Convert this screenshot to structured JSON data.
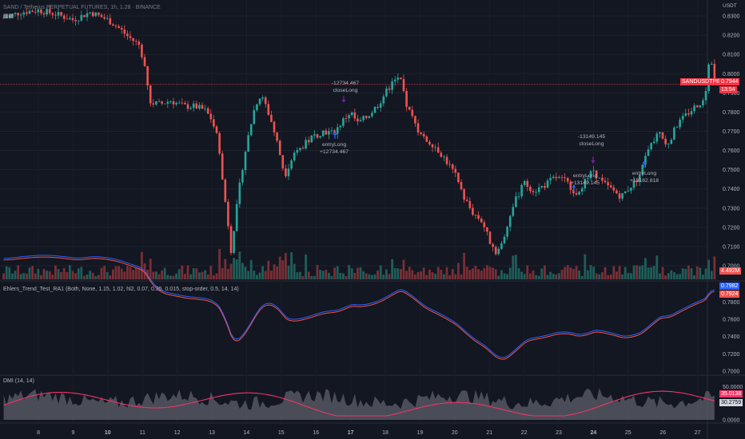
{
  "header": {
    "symbol_line": "SAND / Tetherus PERPETUAL FUTURES, 1h, 1.28 · BINANCE",
    "currency": "USDT"
  },
  "price_pane": {
    "ticks": [
      "0.8300",
      "0.8200",
      "0.8100",
      "0.8000",
      "0.7900",
      "0.7800",
      "0.7700",
      "0.7600",
      "0.7500",
      "0.7400",
      "0.7300",
      "0.7200",
      "0.7100",
      "0.7000"
    ],
    "symbol_tag": "SANDUSDTPERP",
    "last_price": "0.7944",
    "countdown": "13:54",
    "volume_tag": "4.492M",
    "colors": {
      "up": "#26a69a",
      "down": "#ef5350",
      "tag": "#f23645",
      "volume_up": "#1f5e59",
      "volume_down": "#7a2f35"
    },
    "annotations": [
      {
        "name": "close-long-1",
        "lines": [
          "-12734.467",
          "closeLong"
        ]
      },
      {
        "name": "entry-long-1",
        "lines": [
          "entryLong",
          "+12734.467"
        ]
      },
      {
        "name": "close-long-2",
        "lines": [
          "-13149.145",
          "closeLong"
        ]
      },
      {
        "name": "entry-long-2",
        "lines": [
          "entryLong",
          "+13149.145"
        ]
      },
      {
        "name": "entry-long-3",
        "lines": [
          "entryLong",
          "+13182.818"
        ]
      }
    ]
  },
  "indicator_pane": {
    "title": "Ehlers_Trend_Test_RA1 (Both, None, 1.15, 1.02, hl2, 0.07, 0.35, 0.015, stop-order, 0.5, 14, 14)",
    "ticks": [
      "0.7800",
      "0.7600",
      "0.7400",
      "0.7200",
      "0.7000"
    ],
    "value_blue": "0.7982",
    "value_red": "0.7924",
    "colors": {
      "blue": "#2962ff",
      "red": "#ef5350"
    }
  },
  "dmi_pane": {
    "title": "DMI (14, 14)",
    "ticks": [
      "50.0000",
      "0.0000"
    ],
    "value_pink": "35.0138",
    "value_gray": "30.2759",
    "colors": {
      "pink": "#f23468",
      "area": "#5d606b"
    }
  },
  "x_axis": {
    "labels": [
      "8",
      "9",
      "10",
      "11",
      "12",
      "13",
      "14",
      "15",
      "16",
      "17",
      "18",
      "19",
      "20",
      "21",
      "22",
      "23",
      "24",
      "25",
      "26",
      "27"
    ]
  },
  "chart_data": {
    "type": "candlestick",
    "timeframe": "1h",
    "ylim": [
      0.695,
      0.835
    ],
    "x_range": [
      "7",
      "27"
    ],
    "close_path": [
      [
        "7.0",
        0.829
      ],
      [
        "7.5",
        0.832
      ],
      [
        "8.0",
        0.833
      ],
      [
        "8.5",
        0.831
      ],
      [
        "9.0",
        0.828
      ],
      [
        "9.5",
        0.832
      ],
      [
        "10.0",
        0.828
      ],
      [
        "10.3",
        0.824
      ],
      [
        "10.6",
        0.819
      ],
      [
        "10.9",
        0.815
      ],
      [
        "11.1",
        0.803
      ],
      [
        "11.2",
        0.785
      ],
      [
        "11.5",
        0.784
      ],
      [
        "11.8",
        0.786
      ],
      [
        "12.2",
        0.783
      ],
      [
        "12.5",
        0.783
      ],
      [
        "12.8",
        0.781
      ],
      [
        "13.0",
        0.776
      ],
      [
        "13.2",
        0.764
      ],
      [
        "13.3",
        0.745
      ],
      [
        "13.45",
        0.725
      ],
      [
        "13.55",
        0.708
      ],
      [
        "13.7",
        0.728
      ],
      [
        "13.85",
        0.748
      ],
      [
        "14.0",
        0.763
      ],
      [
        "14.2",
        0.78
      ],
      [
        "14.35",
        0.788
      ],
      [
        "14.5",
        0.786
      ],
      [
        "14.7",
        0.776
      ],
      [
        "14.9",
        0.763
      ],
      [
        "15.1",
        0.747
      ],
      [
        "15.3",
        0.756
      ],
      [
        "15.6",
        0.762
      ],
      [
        "15.9",
        0.767
      ],
      [
        "16.2",
        0.77
      ],
      [
        "16.5",
        0.769
      ],
      [
        "16.8",
        0.776
      ],
      [
        "17.0",
        0.78
      ],
      [
        "17.2",
        0.774
      ],
      [
        "17.5",
        0.778
      ],
      [
        "17.8",
        0.784
      ],
      [
        "18.0",
        0.79
      ],
      [
        "18.2",
        0.795
      ],
      [
        "18.4",
        0.799
      ],
      [
        "18.6",
        0.784
      ],
      [
        "18.9",
        0.772
      ],
      [
        "19.1",
        0.766
      ],
      [
        "19.4",
        0.763
      ],
      [
        "19.7",
        0.756
      ],
      [
        "20.0",
        0.748
      ],
      [
        "20.2",
        0.738
      ],
      [
        "20.5",
        0.728
      ],
      [
        "20.8",
        0.723
      ],
      [
        "21.0",
        0.713
      ],
      [
        "21.2",
        0.707
      ],
      [
        "21.4",
        0.712
      ],
      [
        "21.6",
        0.727
      ],
      [
        "21.8",
        0.736
      ],
      [
        "22.0",
        0.743
      ],
      [
        "22.3",
        0.739
      ],
      [
        "22.6",
        0.742
      ],
      [
        "22.9",
        0.746
      ],
      [
        "23.2",
        0.744
      ],
      [
        "23.5",
        0.738
      ],
      [
        "23.8",
        0.745
      ],
      [
        "24.0",
        0.75
      ],
      [
        "24.2",
        0.744
      ],
      [
        "24.5",
        0.74
      ],
      [
        "24.8",
        0.736
      ],
      [
        "25.0",
        0.74
      ],
      [
        "25.3",
        0.746
      ],
      [
        "25.6",
        0.761
      ],
      [
        "25.9",
        0.77
      ],
      [
        "26.1",
        0.762
      ],
      [
        "26.4",
        0.773
      ],
      [
        "26.7",
        0.779
      ],
      [
        "27.0",
        0.784
      ],
      [
        "27.2",
        0.786
      ],
      [
        "27.35",
        0.809
      ],
      [
        "27.5",
        0.7944
      ]
    ],
    "signals": [
      {
        "type": "closeLong",
        "amount": "-12734.467",
        "x": "16.8"
      },
      {
        "type": "entryLong",
        "amount": "+12734.467",
        "x": "16.7"
      },
      {
        "type": "closeLong",
        "amount": "-13149.145",
        "x": "24.1"
      },
      {
        "type": "entryLong",
        "amount": "+13149.145",
        "x": "24.0"
      },
      {
        "type": "entryLong",
        "amount": "+13182.818",
        "x": "25.6"
      }
    ]
  }
}
